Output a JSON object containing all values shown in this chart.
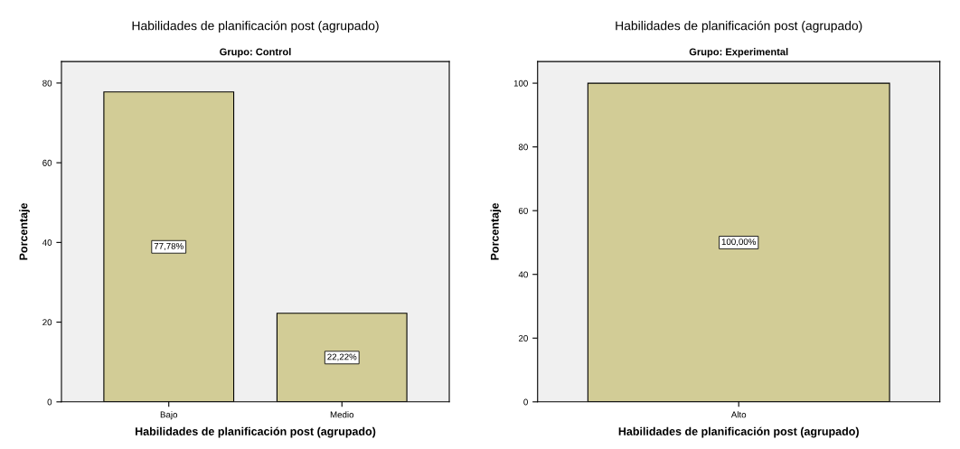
{
  "chart_data": [
    {
      "type": "bar",
      "title": "Habilidades de planificación post (agrupado)",
      "subtitle": "Grupo: Control",
      "xlabel": "Habilidades de planificación post (agrupado)",
      "ylabel": "Porcentaje",
      "categories": [
        "Bajo",
        "Medio"
      ],
      "values": [
        77.78,
        22.22
      ],
      "value_labels": [
        "77,78%",
        "22,22%"
      ],
      "color": "#d2cc96",
      "ylim": [
        0,
        85.4
      ],
      "yticks": [
        0,
        20,
        40,
        60,
        80
      ],
      "grid": false
    },
    {
      "type": "bar",
      "title": "Habilidades de planificación post (agrupado)",
      "subtitle": "Grupo: Experimental",
      "xlabel": "Habilidades de planificación post (agrupado)",
      "ylabel": "Porcentaje",
      "categories": [
        "Alto"
      ],
      "values": [
        100
      ],
      "value_labels": [
        "100,00%"
      ],
      "color": "#d2cc96",
      "ylim": [
        0,
        106.8
      ],
      "yticks": [
        0,
        20,
        40,
        60,
        80,
        100
      ],
      "grid": false
    }
  ]
}
